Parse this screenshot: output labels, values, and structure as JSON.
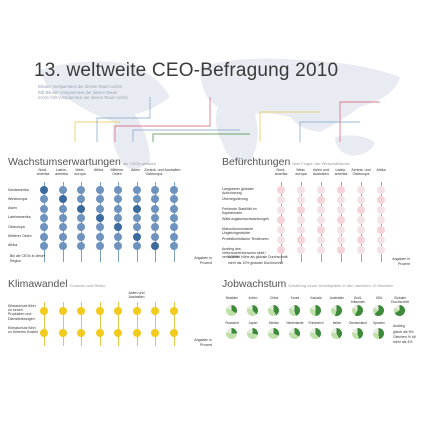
{
  "title": "13. weltweite CEO-Befragung 2010",
  "intro_text": "Blinder Vorspanntext der diesen Raum schön füllt Blinder Vorspanntext der diesen Raum schön füllt Vorspanntext der diesen Raum schön",
  "colors": {
    "blue_dark": "#3a6a9e",
    "blue_light": "#c9d8ea",
    "red_dark": "#d8576b",
    "red_light": "#f5d3d9",
    "yellow": "#f2cb1c",
    "green_dark": "#3d8a3a",
    "green_light": "#bfe0a8",
    "map": "#e8ecf2"
  },
  "growth": {
    "heading": "Wachstumserwartungen",
    "subheading": "der CEOs weltweit",
    "columns": [
      "Nord-\namerika",
      "Latein-\namerika",
      "West-\neuropa",
      "Afrika",
      "Mittlerer\nOsten",
      "Asien",
      "Zentral- und\nOsteuropa",
      "Australien"
    ],
    "rows": [
      "Nordamerika",
      "Westeuropa",
      "Asien",
      "Lateinamerika",
      "Osteuropa",
      "Mittlerer Osten",
      "Afrika"
    ],
    "legend": "Bis die CEOs in dieser Region",
    "note": "Angaben in Prozent"
  },
  "concerns": {
    "heading": "Befürchtungen",
    "subheading": "über Folgen der Wirtschaftskrise",
    "columns": [
      "Nord-\namerika",
      "West-\neuropa",
      "Asien und\nAustralien",
      "Latein-\namerika",
      "Zentral- und\nOsteuropa",
      "Afrika"
    ],
    "rows": [
      "Langsamer globaler Aufschwung",
      "Überregulierung",
      "Fehlende Stabilität im Kapitalmarkt",
      "Währungskursschwankungen",
      "Makroökonomische Ungleichgewichte",
      "Protektionistische Tendenzen",
      "Anstieg des Verbraucherkonsums sinkt / verhaltene"
    ],
    "legend_1": "0-100% Höhe als globale Durchschnitt",
    "legend_2": "mehr als 10% globaler Durchschnitt",
    "note": "Angaben in Prozent"
  },
  "climate": {
    "heading": "Klimawandel",
    "subheading": "Chancen und Risiko",
    "columns": [
      "Asien und\nAustralien"
    ],
    "rows": [
      "Klimaschutz führt zu neuen Produkten und Dienstleistungen",
      "Klimaschutz führt zu höheren Kosten"
    ],
    "note": "Angaben in Prozent"
  },
  "jobs": {
    "heading": "Jobwachstum",
    "subheading": "Schaffung neuer Arbeitsplätze in den nächsten 12 Monaten",
    "countries_row1": [
      "Brasilien",
      "Indien",
      "China",
      "Korea",
      "Kanada",
      "Australien",
      "Groß-\nbritannien",
      "USA",
      "Globaler\nDurchschnitt"
    ],
    "countries_row2": [
      "Russland",
      "Japan",
      "Mexiko",
      "Niederlande",
      "Frankreich",
      "Italien",
      "Deutschland",
      "Spanien"
    ],
    "legend_title": "Anstieg",
    "legend_items": [
      "gleich als 5%",
      "Gleichen % ldt",
      "mehr als 4%"
    ]
  }
}
